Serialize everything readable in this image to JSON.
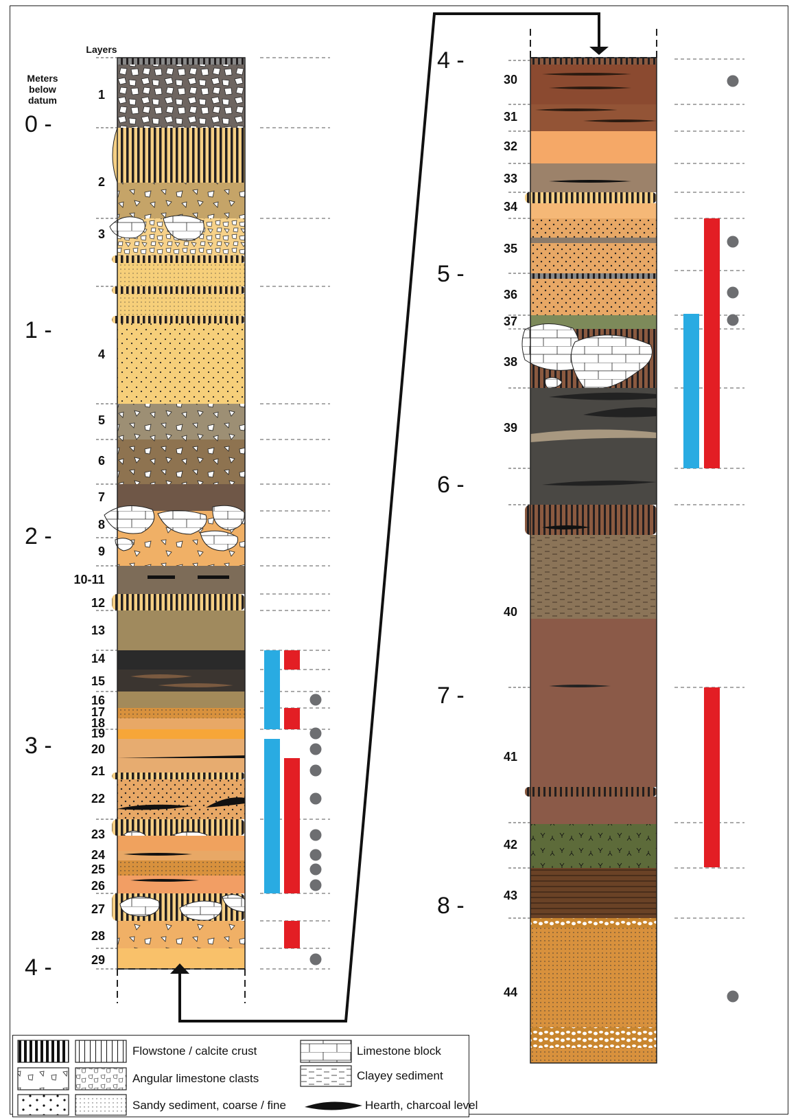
{
  "header": {
    "layers": "Layers",
    "meters_line1": "Meters",
    "meters_line2": "below",
    "meters_line3": "datum"
  },
  "depth_ticks_left": [
    "0 -",
    "1 -",
    "2 -",
    "3 -",
    "4 -"
  ],
  "depth_ticks_right": [
    "4 -",
    "5 -",
    "6 -",
    "7 -",
    "8 -"
  ],
  "layers_left": [
    "1",
    "2",
    "3",
    "4",
    "5",
    "6",
    "7",
    "8",
    "9",
    "10-11",
    "12",
    "13",
    "14",
    "15",
    "16",
    "17",
    "18",
    "19",
    "20",
    "21",
    "22",
    "23",
    "24",
    "25",
    "26",
    "27",
    "28",
    "29"
  ],
  "layers_right": [
    "30",
    "31",
    "32",
    "33",
    "34",
    "35",
    "36",
    "37",
    "38",
    "39",
    "40",
    "41",
    "42",
    "43",
    "44"
  ],
  "legend": {
    "flowstone": "Flowstone / calcite crust",
    "angular": "Angular limestone clasts",
    "sandy": "Sandy sediment, coarse / fine",
    "limestone_block": "Limestone block",
    "clayey": "Clayey sediment",
    "hearth": "Hearth, charcoal level"
  },
  "colors": {
    "blue_bar": "#29abe2",
    "red_bar": "#e31e24",
    "dot": "#6d6e71"
  }
}
